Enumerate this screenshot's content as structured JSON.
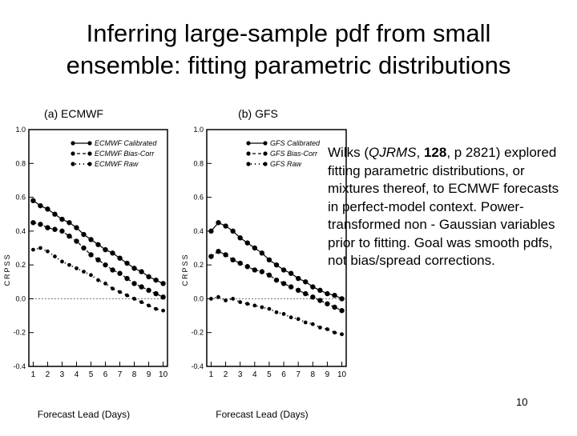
{
  "slide": {
    "title_line1": "Inferring large-sample pdf from small",
    "title_line2": "ensemble: fitting parametric distributions",
    "body_parts": [
      "Wilks (",
      "QJRMS",
      ", ",
      "128",
      ", p 2821) explored fitting parametric distributions, or mixtures thereof, to ECMWF forecasts in perfect-model context. Power-transformed non - Gaussian variables prior to fitting.  Goal was smooth pdfs, not bias/spread corrections."
    ],
    "slide_number": "10"
  },
  "chart_data": [
    {
      "type": "line",
      "title": "(a) ECMWF",
      "xlabel": "Forecast Lead (Days)",
      "ylabel": "CRPSS",
      "x": [
        1,
        1.5,
        2,
        2.5,
        3,
        3.5,
        4,
        4.5,
        5,
        5.5,
        6,
        6.5,
        7,
        7.5,
        8,
        8.5,
        9,
        9.5,
        10
      ],
      "xticks": [
        1,
        2,
        3,
        4,
        5,
        6,
        7,
        8,
        9,
        10
      ],
      "yticks": [
        "-0.4",
        "-0.2",
        "0.0",
        "0.2",
        "0.4",
        "0.6",
        "0.8",
        "1.0"
      ],
      "xlim": [
        0.7,
        10.3
      ],
      "ylim": [
        -0.4,
        1.0
      ],
      "legend_position": "top-left",
      "series": [
        {
          "name": "ECMWF Calibrated",
          "values": [
            0.58,
            0.55,
            0.53,
            0.5,
            0.47,
            0.45,
            0.42,
            0.38,
            0.35,
            0.32,
            0.29,
            0.27,
            0.24,
            0.21,
            0.18,
            0.16,
            0.13,
            0.11,
            0.09
          ]
        },
        {
          "name": "ECMWF Bias-Corr",
          "values": [
            0.45,
            0.44,
            0.42,
            0.41,
            0.4,
            0.37,
            0.34,
            0.3,
            0.26,
            0.23,
            0.2,
            0.17,
            0.15,
            0.12,
            0.09,
            0.07,
            0.05,
            0.03,
            0.01
          ]
        },
        {
          "name": "ECMWF Raw",
          "values": [
            0.29,
            0.3,
            0.28,
            0.25,
            0.22,
            0.2,
            0.18,
            0.16,
            0.14,
            0.11,
            0.09,
            0.06,
            0.04,
            0.02,
            0.0,
            -0.02,
            -0.04,
            -0.06,
            -0.07
          ]
        }
      ]
    },
    {
      "type": "line",
      "title": "(b) GFS",
      "xlabel": "Forecast Lead (Days)",
      "ylabel": "CRPSS",
      "x": [
        1,
        1.5,
        2,
        2.5,
        3,
        3.5,
        4,
        4.5,
        5,
        5.5,
        6,
        6.5,
        7,
        7.5,
        8,
        8.5,
        9,
        9.5,
        10
      ],
      "xticks": [
        1,
        2,
        3,
        4,
        5,
        6,
        7,
        8,
        9,
        10
      ],
      "yticks": [
        "-0.4",
        "-0.2",
        "0.0",
        "0.2",
        "0.4",
        "0.6",
        "0.8",
        "1.0"
      ],
      "xlim": [
        0.7,
        10.3
      ],
      "ylim": [
        -0.4,
        1.0
      ],
      "legend_position": "top-left",
      "series": [
        {
          "name": "GFS Calibrated",
          "values": [
            0.4,
            0.45,
            0.43,
            0.4,
            0.36,
            0.33,
            0.3,
            0.27,
            0.23,
            0.2,
            0.17,
            0.15,
            0.12,
            0.1,
            0.07,
            0.05,
            0.03,
            0.02,
            0.0
          ]
        },
        {
          "name": "GFS Bias-Corr",
          "values": [
            0.25,
            0.28,
            0.26,
            0.23,
            0.21,
            0.19,
            0.17,
            0.16,
            0.14,
            0.11,
            0.09,
            0.07,
            0.05,
            0.03,
            0.01,
            -0.01,
            -0.03,
            -0.05,
            -0.07
          ]
        },
        {
          "name": "GFS Raw",
          "values": [
            0.0,
            0.01,
            -0.01,
            0.0,
            -0.02,
            -0.03,
            -0.04,
            -0.05,
            -0.06,
            -0.08,
            -0.09,
            -0.11,
            -0.12,
            -0.14,
            -0.15,
            -0.17,
            -0.18,
            -0.2,
            -0.21
          ]
        }
      ]
    }
  ]
}
